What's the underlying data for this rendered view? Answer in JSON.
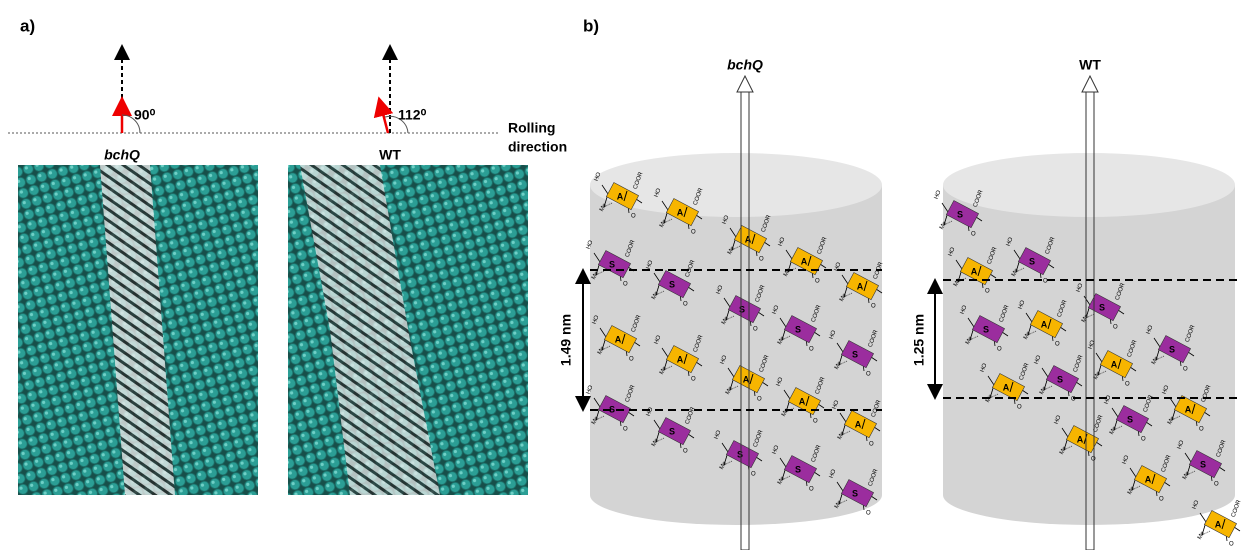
{
  "panel_a": {
    "label": "a)",
    "angle_left": "90⁰",
    "angle_right": "112⁰",
    "rolling_direction": [
      "Rolling",
      "direction"
    ],
    "strain_left": "bchQ",
    "strain_right": "WT"
  },
  "panel_b": {
    "label": "b)",
    "strain_left": "bchQ",
    "strain_right": "WT",
    "spacing_left": "1.49 nm",
    "spacing_right": "1.25 nm",
    "molecule_labels": {
      "a": "A",
      "s": "S",
      "hydroxyl": "HO",
      "ester": "COOR",
      "methyl": "Me",
      "oxygen": "O"
    }
  }
}
